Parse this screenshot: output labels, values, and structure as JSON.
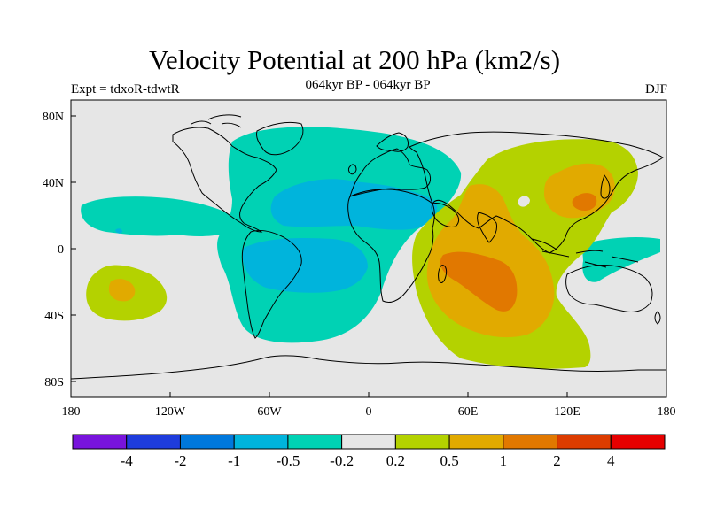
{
  "title": "Velocity Potential at 200 hPa (km2/s)",
  "experiment": "Expt = tdxoR-tdwtR",
  "period": "064kyr BP - 064kyr BP",
  "season": "DJF",
  "colors": {
    "background": "#e6e6e6",
    "weak_neg": "#00d2b4",
    "mod_neg": "#00b4dc",
    "weak_pos": "#b4d200",
    "mod_pos": "#e1aa00",
    "strong_pos": "#e17800"
  },
  "map": {
    "lat_labels": [
      "80N",
      "40N",
      "0",
      "40S",
      "80S"
    ],
    "lon_labels": [
      "180",
      "120W",
      "60W",
      "0",
      "60E",
      "120E",
      "180"
    ]
  },
  "colorbar": {
    "colors": [
      "#7814dc",
      "#1e3cdc",
      "#0078dc",
      "#00b4dc",
      "#00d2b4",
      "#e6e6e6",
      "#b4d200",
      "#e1aa00",
      "#e17800",
      "#dc3c00",
      "#e60000"
    ],
    "labels": [
      "-4",
      "-2",
      "-1",
      "-0.5",
      "-0.2",
      "0.2",
      "0.5",
      "1",
      "2",
      "4"
    ]
  }
}
